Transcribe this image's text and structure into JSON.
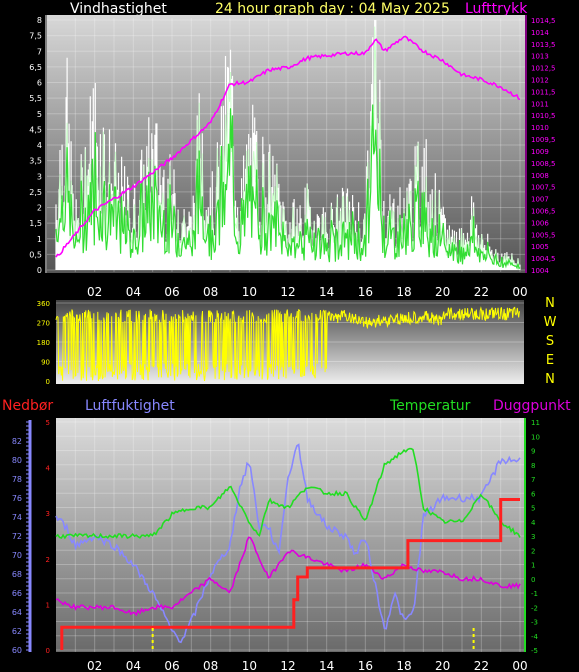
{
  "header": {
    "left_title": "Vindhastighet",
    "center_title": "24 hour graph day : 04 May 2025",
    "right_title": "Lufttrykk"
  },
  "colors": {
    "wind_gust": "#ffffff",
    "wind_avg": "#33dd33",
    "wind_light": "#ccffcc",
    "pressure": "#ff00ff",
    "direction": "#ffff00",
    "rain": "#ff2020",
    "humidity": "#8888ff",
    "temperature": "#22dd22",
    "dewpoint": "#dd00dd",
    "title": "#ffff66"
  },
  "x_ticks": [
    "02",
    "04",
    "06",
    "08",
    "10",
    "12",
    "14",
    "16",
    "18",
    "20",
    "22",
    "00"
  ],
  "chart_data": [
    {
      "type": "line",
      "series": [
        {
          "name": "Vindhastighet",
          "axis": "left",
          "x": [
            0,
            0.5,
            1,
            1.5,
            2,
            3,
            4,
            5,
            6,
            7,
            7.5,
            8,
            8.5,
            9,
            9.5,
            10,
            11,
            11.5,
            12,
            13,
            14,
            15,
            16,
            16.5,
            17,
            18,
            19,
            20,
            21,
            21.5,
            22,
            23,
            24
          ],
          "values": [
            2.5,
            5.5,
            1.5,
            3.5,
            5,
            3,
            2,
            4,
            2.5,
            1.5,
            5,
            2,
            3.5,
            6.5,
            2,
            4,
            3,
            2.5,
            1.5,
            2,
            1.5,
            2,
            1.5,
            8,
            2,
            2,
            3.5,
            1.5,
            1,
            2,
            1,
            0.5,
            0.3
          ]
        },
        {
          "name": "Lufttrykk",
          "axis": "right",
          "x": [
            0,
            2,
            4,
            6,
            8,
            9,
            10,
            11,
            12,
            13,
            14,
            15,
            16,
            16.5,
            17,
            18,
            19,
            20,
            21,
            22,
            23,
            24
          ],
          "values": [
            1004.5,
            1006.5,
            1007.5,
            1008.7,
            1010.2,
            1011.8,
            1011.9,
            1012.4,
            1012.5,
            1012.9,
            1013,
            1013.1,
            1013.1,
            1013.7,
            1013.2,
            1013.8,
            1013.2,
            1012.8,
            1012.2,
            1012,
            1011.7,
            1011.2
          ]
        }
      ],
      "y_left_ticks": [
        "0",
        "0,5",
        "1",
        "1,5",
        "2",
        "2,5",
        "3",
        "3,5",
        "4",
        "4,5",
        "5",
        "5,5",
        "6",
        "6,5",
        "7",
        "7,5",
        "8"
      ],
      "y_right_ticks": [
        "1004",
        "1004,5",
        "1005",
        "1005,5",
        "1006",
        "1006,5",
        "1007",
        "1007,5",
        "1008",
        "1008,5",
        "1009",
        "1009,5",
        "1010",
        "1010,5",
        "1011",
        "1011,5",
        "1012",
        "1012,5",
        "1013",
        "1013,5",
        "1014",
        "1014,5"
      ],
      "ylim_left": [
        0,
        8
      ],
      "ylim_right": [
        1004,
        1014.5
      ]
    },
    {
      "type": "line",
      "series": [
        {
          "name": "direction",
          "x": [
            0,
            1,
            2,
            3,
            4,
            5,
            6,
            7,
            8,
            9,
            10,
            11,
            12,
            13,
            14,
            15,
            16,
            17,
            18,
            19,
            20,
            21,
            22,
            23,
            24
          ],
          "values": [
            200,
            330,
            40,
            320,
            60,
            320,
            20,
            300,
            40,
            330,
            10,
            320,
            300,
            310,
            320,
            330,
            300,
            310,
            320,
            330,
            300,
            280,
            290,
            300,
            330
          ]
        }
      ],
      "y_ticks": [
        "0",
        "90",
        "180",
        "270",
        "360"
      ],
      "ylim": [
        0,
        360
      ],
      "compass": [
        "N",
        "W",
        "S",
        "E",
        "N"
      ]
    },
    {
      "type": "line",
      "legend": [
        "Nedbør",
        "Luftfuktighet",
        "Temperatur",
        "Duggpunkt"
      ],
      "series": [
        {
          "name": "Nedbør",
          "x": [
            0.3,
            0.3,
            12,
            12.3,
            12.5,
            13,
            18,
            18.2,
            22.5,
            23,
            24
          ],
          "values": [
            0,
            0.5,
            0.5,
            1.1,
            1.6,
            1.8,
            1.8,
            2.4,
            2.4,
            3.3,
            3.3
          ]
        },
        {
          "name": "Luftfuktighet",
          "x": [
            0,
            0.5,
            1,
            2,
            3,
            4,
            5,
            5.5,
            6,
            6.5,
            7,
            8,
            9,
            9.5,
            10,
            10.5,
            11,
            11.5,
            12,
            12.5,
            13,
            14,
            15,
            15.5,
            16,
            16.5,
            17,
            17.5,
            18,
            18.5,
            19,
            20,
            21,
            22,
            23,
            24
          ],
          "values": [
            74,
            73,
            71,
            72,
            71,
            69,
            66,
            64,
            62,
            61,
            63,
            68,
            71,
            77,
            80,
            73,
            73,
            70,
            78,
            82,
            76,
            73,
            72,
            70,
            72,
            67,
            62,
            66,
            63,
            64,
            74,
            76,
            76,
            76,
            80,
            80
          ]
        },
        {
          "name": "Temperatur",
          "x": [
            0,
            1,
            2,
            3,
            4,
            5,
            6,
            7,
            8,
            9,
            10,
            10.5,
            11,
            12,
            13,
            14,
            15,
            16,
            17,
            18,
            18.5,
            19,
            20,
            21,
            22,
            23,
            24
          ],
          "values": [
            3,
            3,
            3,
            3,
            3,
            3,
            4.5,
            5,
            5,
            6.5,
            4,
            3,
            5.5,
            5,
            6.5,
            6,
            6,
            4,
            8,
            9,
            9,
            5,
            4,
            4,
            6,
            4,
            3
          ]
        },
        {
          "name": "Duggpunkt",
          "x": [
            0,
            1,
            2,
            3,
            4,
            5,
            6,
            7,
            8,
            9,
            10,
            11,
            12,
            13,
            14,
            15,
            16,
            17,
            18,
            19,
            20,
            21,
            22,
            23,
            24
          ],
          "values": [
            -1.5,
            -2,
            -2,
            -2,
            -2.5,
            -2,
            -2,
            -1,
            0,
            -1,
            3,
            0,
            2,
            1.5,
            1,
            0.5,
            1,
            0,
            1,
            0.5,
            0.5,
            0,
            0,
            -0.5,
            -0.5
          ]
        }
      ],
      "y_humidity_ticks": [
        "60",
        "62",
        "64",
        "66",
        "68",
        "70",
        "72",
        "74",
        "76",
        "78",
        "80",
        "82"
      ],
      "y_temp_ticks": [
        "-5",
        "-4",
        "-3",
        "-2",
        "-1",
        "0",
        "1",
        "2",
        "3",
        "4",
        "5",
        "6",
        "7",
        "8",
        "9",
        "10",
        "11"
      ],
      "y_rain_ticks": [
        "0",
        "1",
        "2",
        "3",
        "4",
        "5"
      ],
      "ylim_humidity": [
        60,
        84
      ],
      "ylim_temp": [
        -5,
        11
      ],
      "ylim_rain": [
        0,
        5
      ]
    }
  ]
}
